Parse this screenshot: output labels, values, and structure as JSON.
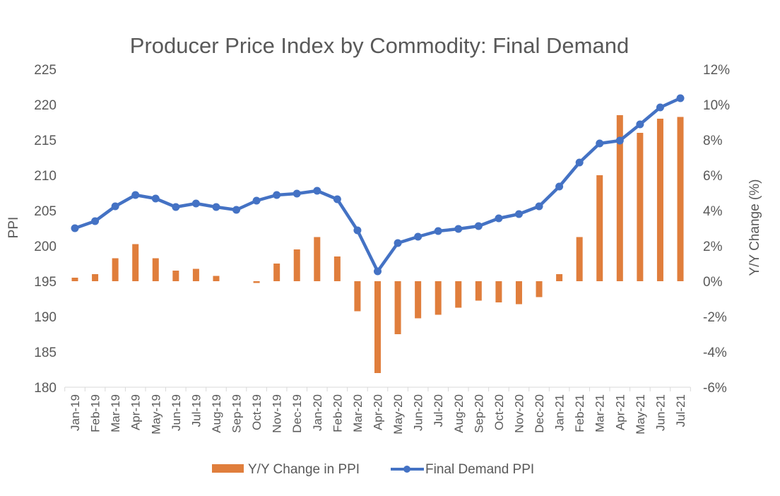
{
  "chart_data": {
    "type": "bar+line",
    "title": "Producer Price Index by Commodity: Final Demand",
    "xlabel": "",
    "ylabel_left": "PPI",
    "ylabel_right": "Y/Y Change  (%)",
    "ylim_left": [
      180,
      225
    ],
    "yticks_left": [
      180,
      185,
      190,
      195,
      200,
      205,
      210,
      215,
      220,
      225
    ],
    "ylim_right": [
      -6,
      12
    ],
    "yticks_right": [
      -6,
      -4,
      -2,
      0,
      2,
      4,
      6,
      8,
      10,
      12
    ],
    "yticks_right_labels": [
      "-6%",
      "-4%",
      "-2%",
      "0%",
      "2%",
      "4%",
      "6%",
      "8%",
      "10%",
      "12%"
    ],
    "grid": false,
    "legend_position": "bottom",
    "categories": [
      "Jan-19",
      "Feb-19",
      "Mar-19",
      "Apr-19",
      "May-19",
      "Jun-19",
      "Jul-19",
      "Aug-19",
      "Sep-19",
      "Oct-19",
      "Nov-19",
      "Dec-19",
      "Jan-20",
      "Feb-20",
      "Mar-20",
      "Apr-20",
      "May-20",
      "Jun-20",
      "Jul-20",
      "Aug-20",
      "Sep-20",
      "Oct-20",
      "Nov-20",
      "Dec-20",
      "Jan-21",
      "Feb-21",
      "Mar-21",
      "Apr-21",
      "May-21",
      "Jun-21",
      "Jul-21"
    ],
    "series": [
      {
        "name": "Y/Y Change in PPI",
        "type": "bar",
        "axis": "right",
        "color": "#E07E3C",
        "values": [
          0.2,
          0.4,
          1.3,
          2.1,
          1.3,
          0.6,
          0.7,
          0.3,
          0.0,
          -0.1,
          1.0,
          1.8,
          2.5,
          1.4,
          -1.7,
          -5.2,
          -3.0,
          -2.1,
          -1.9,
          -1.5,
          -1.1,
          -1.2,
          -1.3,
          -0.9,
          0.4,
          2.5,
          6.0,
          9.4,
          8.4,
          9.2,
          9.3
        ]
      },
      {
        "name": "Final Demand PPI",
        "type": "line",
        "axis": "left",
        "color": "#4472C4",
        "values": [
          202.5,
          203.5,
          205.6,
          207.2,
          206.7,
          205.5,
          206.0,
          205.5,
          205.1,
          206.4,
          207.2,
          207.4,
          207.8,
          206.6,
          202.2,
          196.4,
          200.4,
          201.3,
          202.1,
          202.4,
          202.8,
          203.9,
          204.5,
          205.6,
          208.4,
          211.8,
          214.5,
          214.9,
          217.2,
          219.6,
          220.9
        ]
      }
    ]
  }
}
